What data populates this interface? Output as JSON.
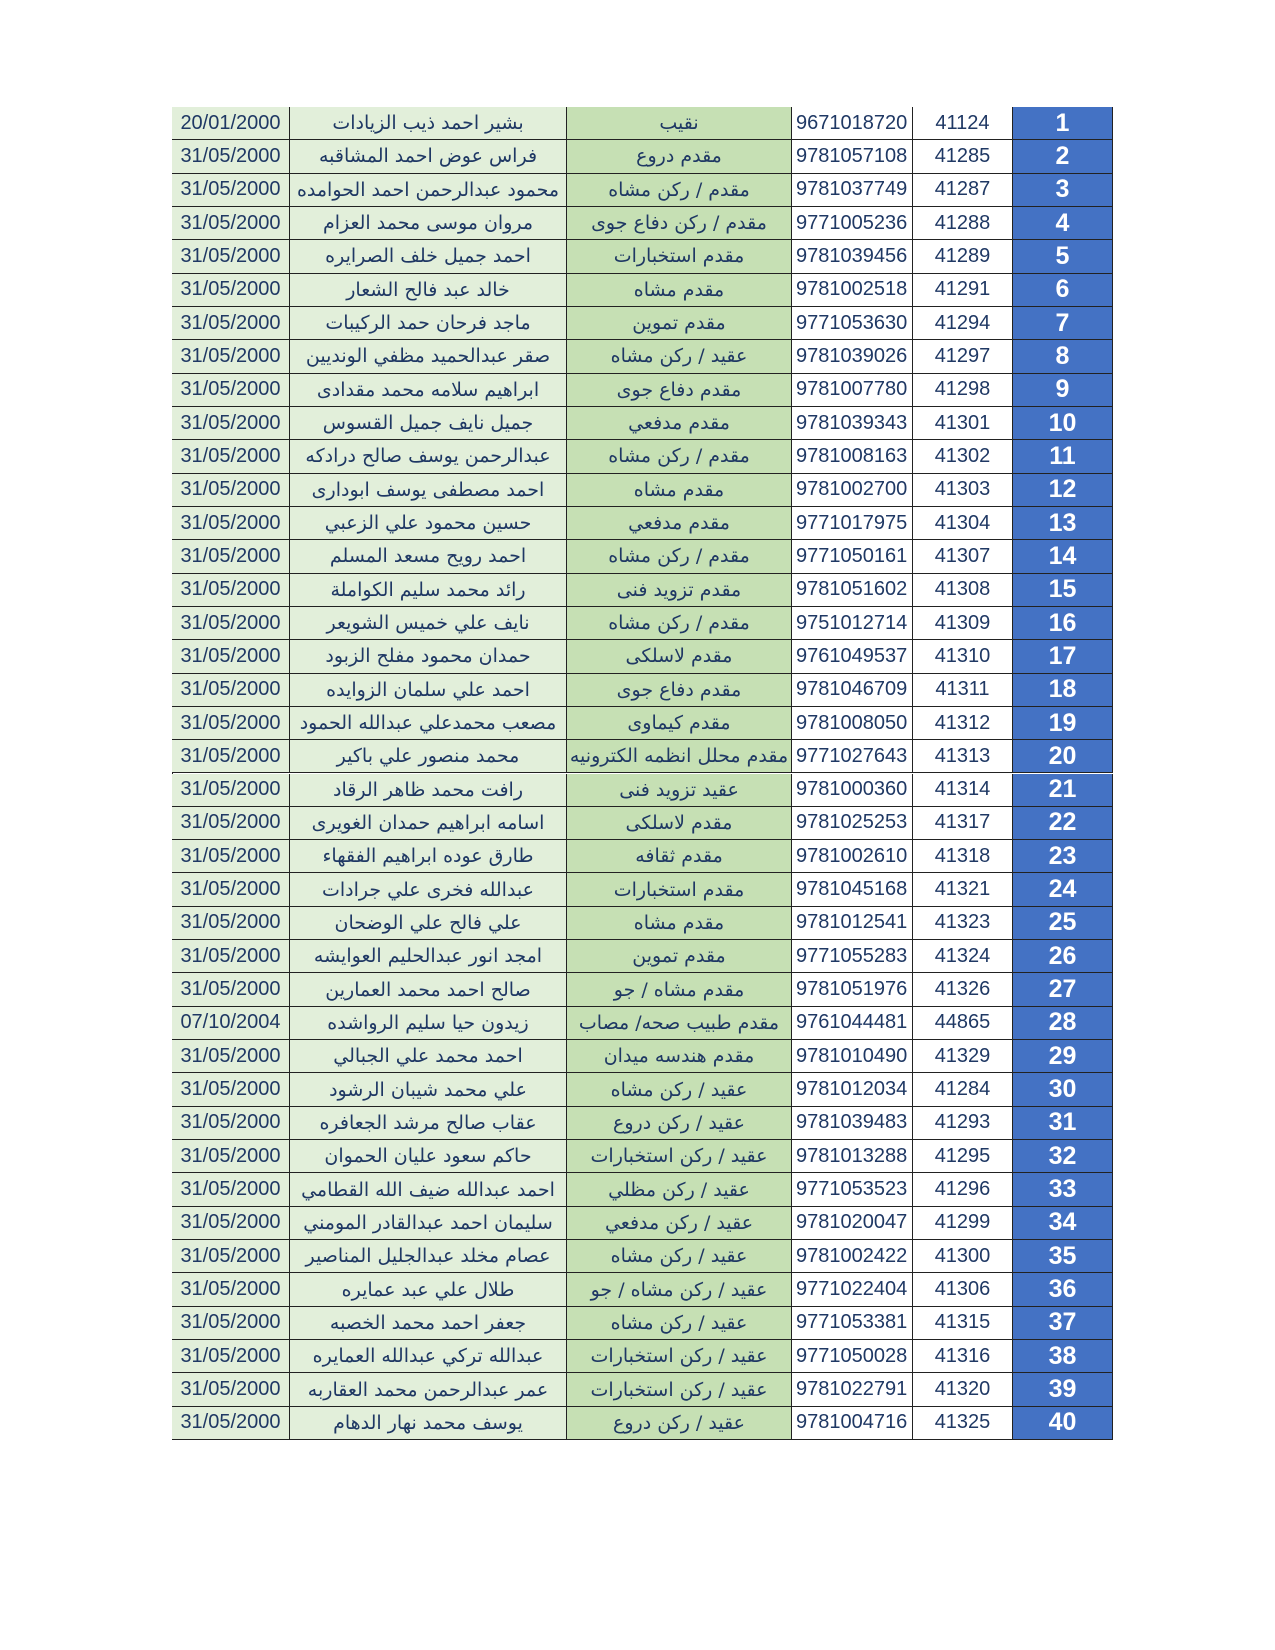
{
  "table": {
    "rows": [
      [
        1,
        "41124",
        "9671018720",
        "نقيب",
        "بشير احمد ذيب الزيادات",
        "20/01/2000"
      ],
      [
        2,
        "41285",
        "9781057108",
        "مقدم دروع",
        "فراس عوض احمد المشاقبه",
        "31/05/2000"
      ],
      [
        3,
        "41287",
        "9781037749",
        "مقدم / ركن مشاه",
        "محمود عبدالرحمن احمد الحوامده",
        "31/05/2000"
      ],
      [
        4,
        "41288",
        "9771005236",
        "مقدم / ركن دفاع جوى",
        "مروان موسى محمد العزام",
        "31/05/2000"
      ],
      [
        5,
        "41289",
        "9781039456",
        "مقدم استخبارات",
        "احمد جميل خلف الصرايره",
        "31/05/2000"
      ],
      [
        6,
        "41291",
        "9781002518",
        "مقدم مشاه",
        "خالد عبد فالح الشعار",
        "31/05/2000"
      ],
      [
        7,
        "41294",
        "9771053630",
        "مقدم تموين",
        "ماجد فرحان حمد الركيبات",
        "31/05/2000"
      ],
      [
        8,
        "41297",
        "9781039026",
        "عقيد / ركن مشاه",
        "صقر عبدالحميد مظفي الونديين",
        "31/05/2000"
      ],
      [
        9,
        "41298",
        "9781007780",
        "مقدم دفاع جوى",
        "ابراهيم سلامه محمد مقدادى",
        "31/05/2000"
      ],
      [
        10,
        "41301",
        "9781039343",
        "مقدم مدفعي",
        "جميل نايف جميل القسوس",
        "31/05/2000"
      ],
      [
        11,
        "41302",
        "9781008163",
        "مقدم / ركن مشاه",
        "عبدالرحمن يوسف صالح درادكه",
        "31/05/2000"
      ],
      [
        12,
        "41303",
        "9781002700",
        "مقدم مشاه",
        "احمد مصطفى يوسف ابودارى",
        "31/05/2000"
      ],
      [
        13,
        "41304",
        "9771017975",
        "مقدم مدفعي",
        "حسين محمود علي الزعبي",
        "31/05/2000"
      ],
      [
        14,
        "41307",
        "9771050161",
        "مقدم / ركن مشاه",
        "احمد رويح مسعد المسلم",
        "31/05/2000"
      ],
      [
        15,
        "41308",
        "9781051602",
        "مقدم تزويد فنى",
        "رائد محمد سليم الكواملة",
        "31/05/2000"
      ],
      [
        16,
        "41309",
        "9751012714",
        "مقدم / ركن مشاه",
        "نايف علي خميس الشويعر",
        "31/05/2000"
      ],
      [
        17,
        "41310",
        "9761049537",
        "مقدم لاسلكى",
        "حمدان محمود مفلح الزبود",
        "31/05/2000"
      ],
      [
        18,
        "41311",
        "9781046709",
        "مقدم دفاع جوى",
        "احمد علي سلمان الزوايده",
        "31/05/2000"
      ],
      [
        19,
        "41312",
        "9781008050",
        "مقدم كيماوى",
        "مصعب محمدعلي عبدالله الحمود",
        "31/05/2000"
      ],
      [
        20,
        "41313",
        "9771027643",
        "مقدم محلل انظمه الكترونيه",
        "محمد منصور علي باكير",
        "31/05/2000"
      ],
      [
        21,
        "41314",
        "9781000360",
        "عقيد تزويد فنى",
        "رافت محمد ظاهر الرقاد",
        "31/05/2000"
      ],
      [
        22,
        "41317",
        "9781025253",
        "مقدم لاسلكى",
        "اسامه ابراهيم حمدان الغويرى",
        "31/05/2000"
      ],
      [
        23,
        "41318",
        "9781002610",
        "مقدم ثقافه",
        "طارق عوده ابراهيم الفقهاء",
        "31/05/2000"
      ],
      [
        24,
        "41321",
        "9781045168",
        "مقدم استخبارات",
        "عبدالله فخرى علي جرادات",
        "31/05/2000"
      ],
      [
        25,
        "41323",
        "9781012541",
        "مقدم مشاه",
        "علي فالح علي الوضحان",
        "31/05/2000"
      ],
      [
        26,
        "41324",
        "9771055283",
        "مقدم تموين",
        "امجد انور عبدالحليم العوايشه",
        "31/05/2000"
      ],
      [
        27,
        "41326",
        "9781051976",
        "مقدم مشاه / جو",
        "صالح احمد محمد العمارين",
        "31/05/2000"
      ],
      [
        28,
        "44865",
        "9761044481",
        "مقدم طبيب صحه/ مصاب",
        "زيدون حيا سليم الرواشده",
        "07/10/2004"
      ],
      [
        29,
        "41329",
        "9781010490",
        "مقدم هندسه ميدان",
        "احمد محمد علي الجبالي",
        "31/05/2000"
      ],
      [
        30,
        "41284",
        "9781012034",
        "عقيد / ركن مشاه",
        "علي محمد شيبان الرشود",
        "31/05/2000"
      ],
      [
        31,
        "41293",
        "9781039483",
        "عقيد / ركن دروع",
        "عقاب صالح مرشد الجعافره",
        "31/05/2000"
      ],
      [
        32,
        "41295",
        "9781013288",
        "عقيد / ركن استخبارات",
        "حاكم سعود عليان الحموان",
        "31/05/2000"
      ],
      [
        33,
        "41296",
        "9771053523",
        "عقيد / ركن مظلي",
        "احمد عبدالله ضيف الله القطامي",
        "31/05/2000"
      ],
      [
        34,
        "41299",
        "9781020047",
        "عقيد / ركن مدفعي",
        "سليمان احمد عبدالقادر المومني",
        "31/05/2000"
      ],
      [
        35,
        "41300",
        "9781002422",
        "عقيد / ركن مشاه",
        "عصام مخلد عبدالجليل المناصير",
        "31/05/2000"
      ],
      [
        36,
        "41306",
        "9771022404",
        "عقيد / ركن مشاه / جو",
        "طلال علي عبد عمايره",
        "31/05/2000"
      ],
      [
        37,
        "41315",
        "9771053381",
        "عقيد / ركن مشاه",
        "جعفر احمد محمد الخصبه",
        "31/05/2000"
      ],
      [
        38,
        "41316",
        "9771050028",
        "عقيد / ركن استخبارات",
        "عبدالله تركي عبدالله العمايره",
        "31/05/2000"
      ],
      [
        39,
        "41320",
        "9781022791",
        "عقيد / ركن استخبارات",
        "عمر عبدالرحمن محمد العقاربه",
        "31/05/2000"
      ],
      [
        40,
        "41325",
        "9781004716",
        "عقيد / ركن دروع",
        "يوسف محمد نهار الدهام",
        "31/05/2000"
      ]
    ]
  }
}
